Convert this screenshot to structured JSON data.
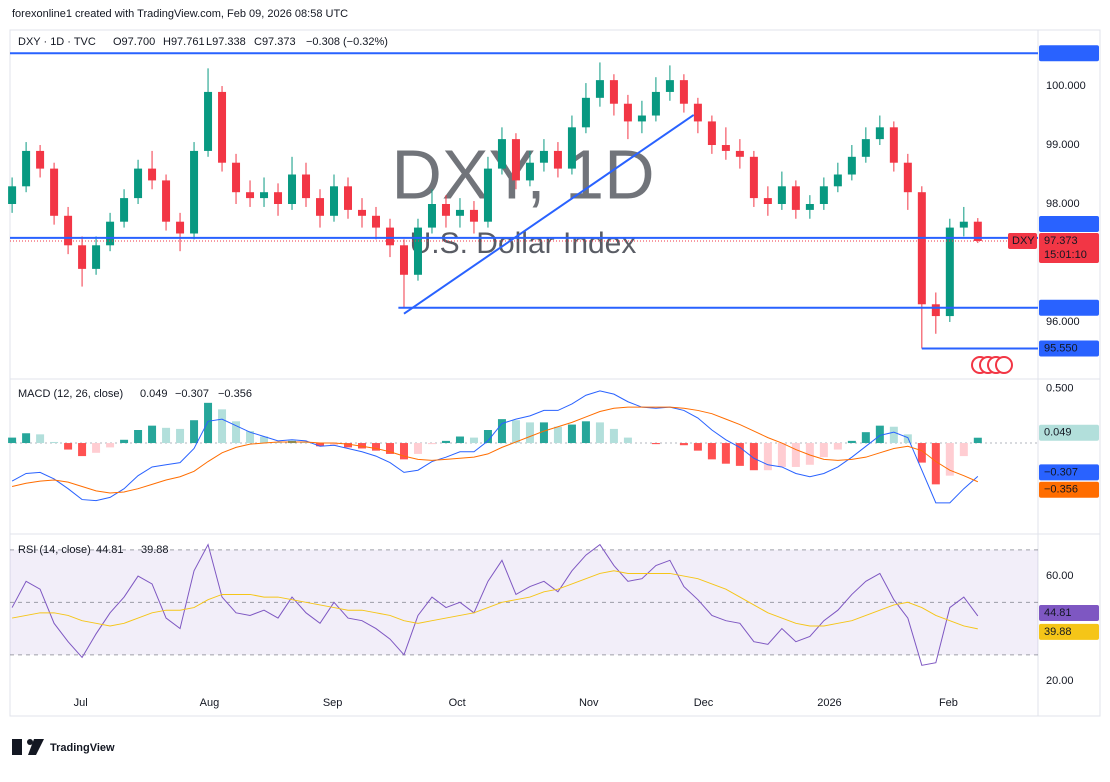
{
  "header": "forexonline1 created with TradingView.com, Feb 09, 2026 08:58 UTC",
  "footer": "TradingView",
  "chart_data": [
    {
      "type": "candlestick",
      "title": "DXY · 1D · TVC",
      "ohlc_labels": [
        "O97.700",
        "H97.761",
        "L97.338",
        "C97.373"
      ],
      "change": "−0.308 (−0.32%)",
      "watermark": "DXY, 1D",
      "watermark_subtitle": "U.S. Dollar Index",
      "up_color": "#089981",
      "down_color": "#f23645",
      "xlim": [
        -0.15,
        73.3
      ],
      "ylim": [
        95.05,
        100.95
      ],
      "yticks": [
        {
          "value": 100,
          "label": "100.000"
        },
        {
          "value": 99,
          "label": "99.000"
        },
        {
          "value": 98,
          "label": "98.000"
        },
        {
          "value": 96,
          "label": "96.000"
        }
      ],
      "xticks": [
        {
          "value": 4.9,
          "label": "Jul"
        },
        {
          "value": 14.1,
          "label": "Aug"
        },
        {
          "value": 22.9,
          "label": "Sep"
        },
        {
          "value": 31.8,
          "label": "Oct"
        },
        {
          "value": 41.2,
          "label": "Nov"
        },
        {
          "value": 49.4,
          "label": "Dec"
        },
        {
          "value": 58.4,
          "label": "2026"
        },
        {
          "value": 66.9,
          "label": "Feb"
        }
      ],
      "candles": [
        [
          98.0,
          98.45,
          97.85,
          98.3
        ],
        [
          98.3,
          99.05,
          98.2,
          98.9
        ],
        [
          98.9,
          99.0,
          98.45,
          98.6
        ],
        [
          98.6,
          98.7,
          97.65,
          97.8
        ],
        [
          97.8,
          97.95,
          97.15,
          97.3
        ],
        [
          97.3,
          97.45,
          96.6,
          96.9
        ],
        [
          96.9,
          97.45,
          96.8,
          97.3
        ],
        [
          97.3,
          97.85,
          97.2,
          97.7
        ],
        [
          97.7,
          98.25,
          97.6,
          98.1
        ],
        [
          98.1,
          98.75,
          98.0,
          98.6
        ],
        [
          98.6,
          98.9,
          98.25,
          98.4
        ],
        [
          98.4,
          98.5,
          97.55,
          97.7
        ],
        [
          97.7,
          97.85,
          97.2,
          97.5
        ],
        [
          97.5,
          99.05,
          97.4,
          98.9
        ],
        [
          98.9,
          100.3,
          98.8,
          99.9
        ],
        [
          99.9,
          100.0,
          98.55,
          98.7
        ],
        [
          98.7,
          98.85,
          98.0,
          98.2
        ],
        [
          98.2,
          98.4,
          97.95,
          98.1
        ],
        [
          98.1,
          98.45,
          97.95,
          98.2
        ],
        [
          98.2,
          98.35,
          97.8,
          98.0
        ],
        [
          98.0,
          98.8,
          97.9,
          98.5
        ],
        [
          98.5,
          98.7,
          97.95,
          98.1
        ],
        [
          98.1,
          98.25,
          97.6,
          97.8
        ],
        [
          97.8,
          98.5,
          97.7,
          98.3
        ],
        [
          98.3,
          98.45,
          97.75,
          97.9
        ],
        [
          97.9,
          98.1,
          97.6,
          97.8
        ],
        [
          97.8,
          97.95,
          97.4,
          97.6
        ],
        [
          97.6,
          97.75,
          97.1,
          97.3
        ],
        [
          97.3,
          97.4,
          96.24,
          96.8
        ],
        [
          96.8,
          97.75,
          96.7,
          97.6
        ],
        [
          97.6,
          98.25,
          97.5,
          98.0
        ],
        [
          98.0,
          98.15,
          97.6,
          97.8
        ],
        [
          97.8,
          98.1,
          97.6,
          97.9
        ],
        [
          97.9,
          98.05,
          97.5,
          97.7
        ],
        [
          97.7,
          98.8,
          97.6,
          98.6
        ],
        [
          98.6,
          99.3,
          98.5,
          99.1
        ],
        [
          99.1,
          99.2,
          98.25,
          98.4
        ],
        [
          98.4,
          98.9,
          98.3,
          98.7
        ],
        [
          98.7,
          99.1,
          98.55,
          98.9
        ],
        [
          98.9,
          99.05,
          98.45,
          98.6
        ],
        [
          98.6,
          99.5,
          98.5,
          99.3
        ],
        [
          99.3,
          100.05,
          99.2,
          99.8
        ],
        [
          99.8,
          100.4,
          99.65,
          100.1
        ],
        [
          100.1,
          100.2,
          99.5,
          99.7
        ],
        [
          99.7,
          99.85,
          99.1,
          99.4
        ],
        [
          99.4,
          99.75,
          99.2,
          99.5
        ],
        [
          99.5,
          100.15,
          99.4,
          99.9
        ],
        [
          99.9,
          100.35,
          99.75,
          100.1
        ],
        [
          100.1,
          100.2,
          99.55,
          99.7
        ],
        [
          99.7,
          99.8,
          99.2,
          99.4
        ],
        [
          99.4,
          99.5,
          98.85,
          99.0
        ],
        [
          99.0,
          99.3,
          98.75,
          98.9
        ],
        [
          98.9,
          99.1,
          98.6,
          98.8
        ],
        [
          98.8,
          98.9,
          97.95,
          98.1
        ],
        [
          98.1,
          98.3,
          97.8,
          98.0
        ],
        [
          98.0,
          98.55,
          97.9,
          98.3
        ],
        [
          98.3,
          98.4,
          97.75,
          97.9
        ],
        [
          97.9,
          98.15,
          97.75,
          98.0
        ],
        [
          98.0,
          98.45,
          97.9,
          98.3
        ],
        [
          98.3,
          98.7,
          98.2,
          98.5
        ],
        [
          98.5,
          99.0,
          98.4,
          98.8
        ],
        [
          98.8,
          99.3,
          98.7,
          99.1
        ],
        [
          99.1,
          99.5,
          99.0,
          99.3
        ],
        [
          99.3,
          99.4,
          98.55,
          98.7
        ],
        [
          98.7,
          98.85,
          97.9,
          98.2
        ],
        [
          98.2,
          98.3,
          95.55,
          96.3
        ],
        [
          96.3,
          96.5,
          95.8,
          96.1
        ],
        [
          96.1,
          97.75,
          96.0,
          97.6
        ],
        [
          97.6,
          97.95,
          97.45,
          97.7
        ],
        [
          97.7,
          97.761,
          97.338,
          97.373
        ]
      ],
      "lines": [
        {
          "value": 100.555,
          "from": -0.15,
          "color": "#2962ff"
        },
        {
          "value": 97.425,
          "from": -0.15,
          "color": "#2962ff"
        },
        {
          "value": 96.241,
          "from": 27.6,
          "color": "#2962ff"
        },
        {
          "value": 95.55,
          "label": "95.550",
          "from": 65,
          "color": "#2962ff"
        }
      ],
      "trend_line": {
        "x": [
          28,
          48.7
        ],
        "y": [
          96.14,
          99.51
        ],
        "color": "#2962ff"
      },
      "last_price": {
        "value": 97.373,
        "name": "DXY",
        "countdown": "15:01:10",
        "color": "#f23645"
      }
    },
    {
      "type": "macd",
      "title": "MACD (12, 26, close)",
      "ylim": [
        -0.8,
        0.58
      ],
      "yticks": [
        {
          "value": 0.5,
          "label": "0.500"
        }
      ],
      "hist_colors": [
        "#26a69a",
        "#b2dfdb",
        "#ffcdd2",
        "#ff5252"
      ],
      "series": [
        {
          "plot": "histogram",
          "color": "#26a69a",
          "values": [
            0.05,
            0.09,
            0.08,
            0.01,
            -0.06,
            -0.12,
            -0.09,
            -0.04,
            0.03,
            0.12,
            0.16,
            0.14,
            0.13,
            0.21,
            0.37,
            0.31,
            0.2,
            0.11,
            0.06,
            0.01,
            0.02,
            0.01,
            -0.03,
            -0.02,
            -0.04,
            -0.05,
            -0.07,
            -0.1,
            -0.15,
            -0.1,
            -0.01,
            0.02,
            0.06,
            0.05,
            0.12,
            0.22,
            0.21,
            0.19,
            0.19,
            0.15,
            0.17,
            0.2,
            0.19,
            0.13,
            0.05,
            0,
            -0.01,
            0,
            -0.02,
            -0.07,
            -0.15,
            -0.19,
            -0.21,
            -0.25,
            -0.25,
            -0.22,
            -0.22,
            -0.2,
            -0.13,
            -0.06,
            0.02,
            0.1,
            0.16,
            0.15,
            0.08,
            -0.18,
            -0.38,
            -0.3,
            -0.12,
            0.049
          ]
        },
        {
          "plot": "line",
          "color": "#2962ff",
          "last_label": "−0.307",
          "values": [
            -0.35,
            -0.28,
            -0.27,
            -0.33,
            -0.42,
            -0.52,
            -0.53,
            -0.5,
            -0.42,
            -0.3,
            -0.22,
            -0.2,
            -0.18,
            -0.05,
            0.2,
            0.22,
            0.16,
            0.1,
            0.06,
            0.02,
            0.03,
            0.02,
            -0.03,
            -0.02,
            -0.05,
            -0.08,
            -0.12,
            -0.18,
            -0.27,
            -0.25,
            -0.17,
            -0.13,
            -0.08,
            -0.08,
            0.02,
            0.18,
            0.22,
            0.25,
            0.3,
            0.3,
            0.36,
            0.44,
            0.48,
            0.45,
            0.38,
            0.33,
            0.32,
            0.33,
            0.3,
            0.23,
            0.12,
            0.03,
            -0.04,
            -0.14,
            -0.2,
            -0.22,
            -0.28,
            -0.31,
            -0.28,
            -0.22,
            -0.13,
            -0.03,
            0.07,
            0.1,
            0.05,
            -0.25,
            -0.55,
            -0.55,
            -0.42,
            -0.307
          ]
        },
        {
          "plot": "line",
          "color": "#ff6d00",
          "last_label": "−0.356",
          "values": [
            -0.4,
            -0.37,
            -0.35,
            -0.34,
            -0.36,
            -0.4,
            -0.44,
            -0.46,
            -0.45,
            -0.42,
            -0.38,
            -0.34,
            -0.31,
            -0.26,
            -0.17,
            -0.09,
            -0.04,
            -0.01,
            0,
            0.01,
            0.01,
            0.01,
            0,
            0,
            -0.01,
            -0.03,
            -0.05,
            -0.08,
            -0.12,
            -0.15,
            -0.16,
            -0.15,
            -0.14,
            -0.13,
            -0.1,
            -0.04,
            0.01,
            0.06,
            0.11,
            0.15,
            0.19,
            0.24,
            0.29,
            0.32,
            0.33,
            0.33,
            0.33,
            0.33,
            0.32,
            0.3,
            0.27,
            0.22,
            0.17,
            0.11,
            0.05,
            0,
            -0.06,
            -0.11,
            -0.15,
            -0.16,
            -0.15,
            -0.13,
            -0.09,
            -0.05,
            -0.03,
            -0.07,
            -0.17,
            -0.25,
            -0.3,
            -0.356
          ]
        }
      ]
    },
    {
      "type": "rsi",
      "title": "RSI (14, close)",
      "ylim": [
        16.6,
        74.5
      ],
      "yticks": [
        {
          "value": 60,
          "label": "60.00"
        },
        {
          "value": 20,
          "label": "20.00"
        }
      ],
      "bands": [
        30,
        50,
        70
      ],
      "band_color": "#7e57c2",
      "series": [
        {
          "plot": "line",
          "color": "#7e57c2",
          "values": [
            48,
            58,
            55,
            42,
            35,
            29,
            38,
            46,
            52,
            60,
            57,
            44,
            40,
            62,
            72,
            52,
            46,
            45,
            47,
            44,
            52,
            46,
            42,
            50,
            44,
            43,
            40,
            36,
            30,
            45,
            52,
            48,
            50,
            46,
            58,
            66,
            53,
            56,
            58,
            54,
            62,
            68,
            72,
            64,
            58,
            59,
            64,
            66,
            56,
            51,
            45,
            43,
            42,
            35,
            34,
            40,
            35,
            37,
            43,
            47,
            53,
            58,
            61,
            51,
            44,
            26,
            27,
            48,
            52,
            44.81
          ]
        },
        {
          "plot": "line",
          "color": "#f5c518",
          "values": [
            44,
            45,
            46,
            46,
            45,
            43,
            42,
            41,
            42,
            44,
            46,
            47,
            47,
            48,
            51,
            53,
            53,
            53,
            52,
            52,
            51,
            50,
            49,
            48,
            47,
            47,
            46,
            45,
            43,
            42,
            43,
            44,
            45,
            46,
            48,
            50,
            51,
            52,
            54,
            55,
            57,
            59,
            61,
            62,
            61,
            61,
            61,
            61,
            60,
            59,
            57,
            55,
            52,
            49,
            46,
            44,
            42,
            41,
            41,
            42,
            43,
            45,
            47,
            49,
            50,
            48,
            45,
            43,
            41,
            39.88
          ]
        }
      ]
    }
  ]
}
